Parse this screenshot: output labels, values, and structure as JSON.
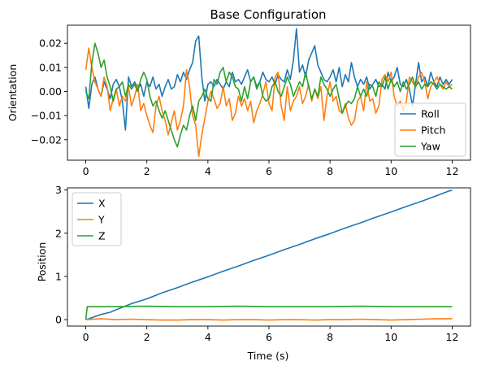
{
  "chart_data": [
    {
      "type": "line",
      "title": "Base Configuration",
      "xlabel": "",
      "ylabel": "Orientation",
      "xlim": [
        -0.6,
        12.6
      ],
      "ylim": [
        -0.0285,
        0.0275
      ],
      "xticks": [
        0,
        2,
        4,
        6,
        8,
        10,
        12
      ],
      "xtick_labels": [
        "0",
        "2",
        "4",
        "6",
        "8",
        "10",
        "12"
      ],
      "yticks": [
        -0.02,
        -0.01,
        0.0,
        0.01,
        0.02
      ],
      "ytick_labels": [
        "−0.02",
        "−0.01",
        "0.00",
        "0.01",
        "0.02"
      ],
      "legend": "lower-right",
      "grid": false,
      "series": [
        {
          "name": "Roll",
          "color": "#1f77b4",
          "x": [
            0,
            0.1,
            0.2,
            0.3,
            0.4,
            0.5,
            0.6,
            0.7,
            0.8,
            0.9,
            1,
            1.1,
            1.2,
            1.3,
            1.4,
            1.5,
            1.6,
            1.7,
            1.8,
            1.9,
            2,
            2.1,
            2.2,
            2.3,
            2.4,
            2.5,
            2.6,
            2.7,
            2.8,
            2.9,
            3,
            3.1,
            3.2,
            3.3,
            3.4,
            3.5,
            3.6,
            3.7,
            3.8,
            3.9,
            4,
            4.1,
            4.2,
            4.3,
            4.4,
            4.5,
            4.6,
            4.7,
            4.8,
            4.9,
            5,
            5.1,
            5.2,
            5.3,
            5.4,
            5.5,
            5.6,
            5.7,
            5.8,
            5.9,
            6,
            6.1,
            6.2,
            6.3,
            6.4,
            6.5,
            6.6,
            6.7,
            6.8,
            6.9,
            7,
            7.1,
            7.2,
            7.3,
            7.4,
            7.5,
            7.6,
            7.7,
            7.8,
            7.9,
            8,
            8.1,
            8.2,
            8.3,
            8.4,
            8.5,
            8.6,
            8.7,
            8.8,
            8.9,
            9,
            9.1,
            9.2,
            9.3,
            9.4,
            9.5,
            9.6,
            9.7,
            9.8,
            9.9,
            10,
            10.1,
            10.2,
            10.3,
            10.4,
            10.5,
            10.6,
            10.7,
            10.8,
            10.9,
            11,
            11.1,
            11.2,
            11.3,
            11.4,
            11.5,
            11.6,
            11.7,
            11.8,
            11.9,
            12
          ],
          "y": [
            0.002,
            -0.007,
            0.003,
            0.006,
            0.001,
            -0.002,
            0.004,
            0.001,
            -0.003,
            0.003,
            0.005,
            0.002,
            -0.004,
            -0.016,
            0.006,
            0.002,
            0.004,
            0.001,
            0.003,
            -0.002,
            0.004,
            0.002,
            0.006,
            0.001,
            0.003,
            -0.002,
            0.002,
            0.005,
            0.001,
            0.002,
            0.007,
            0.004,
            0.008,
            0.005,
            0.009,
            0.012,
            0.021,
            0.023,
            0.006,
            -0.004,
            0.003,
            0.004,
            0.002,
            0.005,
            0.003,
            0.001,
            0.004,
            0.002,
            0.008,
            0.004,
            0.005,
            0.003,
            0.006,
            0.009,
            0.004,
            0.006,
            0.002,
            0.004,
            0.008,
            0.005,
            0.004,
            0.006,
            0.003,
            0.007,
            0.005,
            0.004,
            0.009,
            0.005,
            0.013,
            0.026,
            0.008,
            0.011,
            0.006,
            0.013,
            0.016,
            0.019,
            0.011,
            0.008,
            0.005,
            0.004,
            0.006,
            0.009,
            0.004,
            0.01,
            0.002,
            0.007,
            0.004,
            0.012,
            0.006,
            0.002,
            0.005,
            0.003,
            0.006,
            0.001,
            0.003,
            0.005,
            0.002,
            0.003,
            0.001,
            0.008,
            0.004,
            0.006,
            0.01,
            0.003,
            0.002,
            0.005,
            0.001,
            -0.006,
            0.003,
            0.012,
            0.004,
            0.006,
            0.002,
            0.008,
            0.004,
            0.002,
            0.006,
            0.003,
            0.005,
            0.003,
            0.005
          ]
        },
        {
          "name": "Pitch",
          "color": "#ff7f0e",
          "x": [
            0,
            0.1,
            0.2,
            0.3,
            0.4,
            0.5,
            0.6,
            0.7,
            0.8,
            0.9,
            1,
            1.1,
            1.2,
            1.3,
            1.4,
            1.5,
            1.6,
            1.7,
            1.8,
            1.9,
            2,
            2.1,
            2.2,
            2.3,
            2.4,
            2.5,
            2.6,
            2.7,
            2.8,
            2.9,
            3,
            3.1,
            3.2,
            3.3,
            3.4,
            3.5,
            3.6,
            3.7,
            3.8,
            3.9,
            4,
            4.1,
            4.2,
            4.3,
            4.4,
            4.5,
            4.6,
            4.7,
            4.8,
            4.9,
            5,
            5.1,
            5.2,
            5.3,
            5.4,
            5.5,
            5.6,
            5.7,
            5.8,
            5.9,
            6,
            6.1,
            6.2,
            6.3,
            6.4,
            6.5,
            6.6,
            6.7,
            6.8,
            6.9,
            7,
            7.1,
            7.2,
            7.3,
            7.4,
            7.5,
            7.6,
            7.7,
            7.8,
            7.9,
            8,
            8.1,
            8.2,
            8.3,
            8.4,
            8.5,
            8.6,
            8.7,
            8.8,
            8.9,
            9,
            9.1,
            9.2,
            9.3,
            9.4,
            9.5,
            9.6,
            9.7,
            9.8,
            9.9,
            10,
            10.1,
            10.2,
            10.3,
            10.4,
            10.5,
            10.6,
            10.7,
            10.8,
            10.9,
            11,
            11.1,
            11.2,
            11.3,
            11.4,
            11.5,
            11.6,
            11.7,
            11.8,
            11.9,
            12
          ],
          "y": [
            0.009,
            0.018,
            0.01,
            0.004,
            0.001,
            -0.002,
            0.006,
            0.002,
            -0.008,
            -0.003,
            0.001,
            -0.006,
            -0.002,
            -0.004,
            0.002,
            -0.006,
            -0.002,
            0.003,
            -0.008,
            -0.005,
            -0.01,
            -0.014,
            -0.017,
            -0.006,
            -0.002,
            -0.008,
            -0.012,
            -0.018,
            -0.013,
            -0.008,
            -0.016,
            -0.012,
            -0.006,
            0.009,
            0.002,
            -0.01,
            -0.014,
            -0.027,
            -0.018,
            -0.011,
            -0.004,
            0.0,
            -0.003,
            -0.007,
            -0.005,
            0.002,
            -0.006,
            -0.003,
            -0.012,
            -0.009,
            -0.002,
            -0.006,
            -0.003,
            -0.008,
            -0.004,
            -0.013,
            -0.008,
            -0.005,
            -0.001,
            0.004,
            -0.005,
            -0.008,
            0.006,
            0.008,
            -0.006,
            -0.012,
            0.002,
            -0.008,
            -0.004,
            -0.002,
            0.002,
            -0.005,
            -0.002,
            0.003,
            -0.004,
            0.001,
            -0.003,
            0.002,
            -0.012,
            -0.002,
            0.004,
            -0.004,
            -0.002,
            -0.008,
            -0.009,
            -0.005,
            -0.011,
            -0.014,
            -0.012,
            -0.004,
            -0.002,
            -0.008,
            0.004,
            -0.004,
            -0.003,
            -0.009,
            -0.006,
            0.005,
            0.007,
            0.004,
            0.008,
            -0.002,
            -0.006,
            -0.004,
            -0.008,
            -0.004,
            0.006,
            0.004,
            0.002,
            0.006,
            0.008,
            0.004,
            -0.003,
            0.002,
            0.004,
            0.006,
            0.003,
            0.001,
            0.004,
            0.002,
            0.003
          ]
        },
        {
          "name": "Yaw",
          "color": "#2ca02c",
          "x": [
            0,
            0.1,
            0.2,
            0.3,
            0.4,
            0.5,
            0.6,
            0.7,
            0.8,
            0.9,
            1,
            1.1,
            1.2,
            1.3,
            1.4,
            1.5,
            1.6,
            1.7,
            1.8,
            1.9,
            2,
            2.1,
            2.2,
            2.3,
            2.4,
            2.5,
            2.6,
            2.7,
            2.8,
            2.9,
            3,
            3.1,
            3.2,
            3.3,
            3.4,
            3.5,
            3.6,
            3.7,
            3.8,
            3.9,
            4,
            4.1,
            4.2,
            4.3,
            4.4,
            4.5,
            4.6,
            4.7,
            4.8,
            4.9,
            5,
            5.1,
            5.2,
            5.3,
            5.4,
            5.5,
            5.6,
            5.7,
            5.8,
            5.9,
            6,
            6.1,
            6.2,
            6.3,
            6.4,
            6.5,
            6.6,
            6.7,
            6.8,
            6.9,
            7,
            7.1,
            7.2,
            7.3,
            7.4,
            7.5,
            7.6,
            7.7,
            7.8,
            7.9,
            8,
            8.1,
            8.2,
            8.3,
            8.4,
            8.5,
            8.6,
            8.7,
            8.8,
            8.9,
            9,
            9.1,
            9.2,
            9.3,
            9.4,
            9.5,
            9.6,
            9.7,
            9.8,
            9.9,
            10,
            10.1,
            10.2,
            10.3,
            10.4,
            10.5,
            10.6,
            10.7,
            10.8,
            10.9,
            11,
            11.1,
            11.2,
            11.3,
            11.4,
            11.5,
            11.6,
            11.7,
            11.8,
            11.9,
            12
          ],
          "y": [
            0.0,
            -0.003,
            0.012,
            0.02,
            0.016,
            0.01,
            0.013,
            0.006,
            0.002,
            -0.004,
            0.001,
            0.002,
            0.004,
            -0.002,
            0.003,
            0.001,
            0.003,
            0.0,
            0.005,
            0.008,
            0.005,
            -0.002,
            -0.006,
            -0.004,
            -0.008,
            -0.011,
            -0.008,
            -0.012,
            -0.016,
            -0.02,
            -0.023,
            -0.018,
            -0.014,
            -0.016,
            -0.01,
            -0.006,
            -0.012,
            -0.004,
            -0.002,
            0.001,
            -0.003,
            -0.004,
            0.005,
            0.003,
            0.008,
            0.01,
            0.004,
            0.008,
            0.006,
            0.002,
            0.001,
            -0.004,
            0.002,
            -0.003,
            0.004,
            0.006,
            0.001,
            0.004,
            -0.002,
            -0.004,
            -0.003,
            0.002,
            0.004,
            0.0,
            -0.002,
            0.002,
            0.006,
            0.003,
            -0.002,
            0.001,
            0.004,
            0.002,
            0.008,
            0.002,
            -0.003,
            0.001,
            -0.002,
            0.006,
            0.003,
            0.001,
            -0.002,
            0.001,
            0.003,
            -0.003,
            -0.009,
            -0.006,
            -0.004,
            -0.005,
            -0.003,
            0.002,
            -0.002,
            0.001,
            -0.002,
            0.003,
            0.002,
            -0.002,
            0.004,
            0.002,
            0.006,
            0.001,
            0.005,
            0.002,
            0.004,
            0.0,
            0.004,
            0.001,
            0.003,
            0.006,
            0.002,
            0.004,
            0.001,
            0.003,
            0.002,
            0.004,
            0.003,
            0.001,
            0.003,
            0.002,
            0.001,
            0.002,
            0.001
          ]
        }
      ]
    },
    {
      "type": "line",
      "title": "",
      "xlabel": "Time (s)",
      "ylabel": "Position",
      "xlim": [
        -0.6,
        12.6
      ],
      "ylim": [
        -0.15,
        3.05
      ],
      "xticks": [
        0,
        2,
        4,
        6,
        8,
        10,
        12
      ],
      "xtick_labels": [
        "0",
        "2",
        "4",
        "6",
        "8",
        "10",
        "12"
      ],
      "yticks": [
        0,
        1,
        2,
        3
      ],
      "ytick_labels": [
        "0",
        "1",
        "2",
        "3"
      ],
      "legend": "upper-left",
      "grid": false,
      "series": [
        {
          "name": "X",
          "color": "#1f77b4",
          "x": [
            0,
            0.1,
            0.3,
            0.5,
            0.8,
            1.0,
            1.5,
            2.0,
            2.5,
            3.0,
            3.5,
            4.0,
            4.5,
            5.0,
            5.5,
            6.0,
            6.5,
            7.0,
            7.5,
            8.0,
            8.5,
            9.0,
            9.5,
            10.0,
            10.5,
            11.0,
            11.5,
            11.9,
            12
          ],
          "y": [
            0.0,
            0.02,
            0.07,
            0.12,
            0.17,
            0.23,
            0.37,
            0.48,
            0.62,
            0.74,
            0.87,
            0.99,
            1.12,
            1.24,
            1.37,
            1.49,
            1.62,
            1.74,
            1.87,
            1.99,
            2.12,
            2.24,
            2.37,
            2.49,
            2.62,
            2.74,
            2.87,
            2.98,
            2.99
          ]
        },
        {
          "name": "Y",
          "color": "#ff7f0e",
          "x": [
            0,
            0.5,
            1,
            1.5,
            2,
            2.5,
            3,
            3.5,
            4,
            4.5,
            5,
            5.5,
            6,
            6.5,
            7,
            7.5,
            8,
            8.5,
            9,
            9.5,
            10,
            10.5,
            11,
            11.5,
            12
          ],
          "y": [
            0.0,
            0.02,
            0.0,
            0.01,
            0.0,
            -0.01,
            -0.01,
            0.0,
            0.0,
            -0.01,
            0.0,
            0.0,
            -0.01,
            0.0,
            0.0,
            -0.01,
            0.0,
            0.0,
            0.01,
            0.0,
            -0.01,
            0.0,
            0.01,
            0.02,
            0.02
          ]
        },
        {
          "name": "Z",
          "color": "#2ca02c",
          "x": [
            0,
            0.05,
            0.5,
            1,
            2,
            3,
            4,
            5,
            6,
            7,
            8,
            9,
            10,
            11,
            12
          ],
          "y": [
            0.0,
            0.3,
            0.3,
            0.3,
            0.31,
            0.3,
            0.3,
            0.31,
            0.3,
            0.3,
            0.3,
            0.31,
            0.3,
            0.3,
            0.3
          ]
        }
      ]
    }
  ]
}
